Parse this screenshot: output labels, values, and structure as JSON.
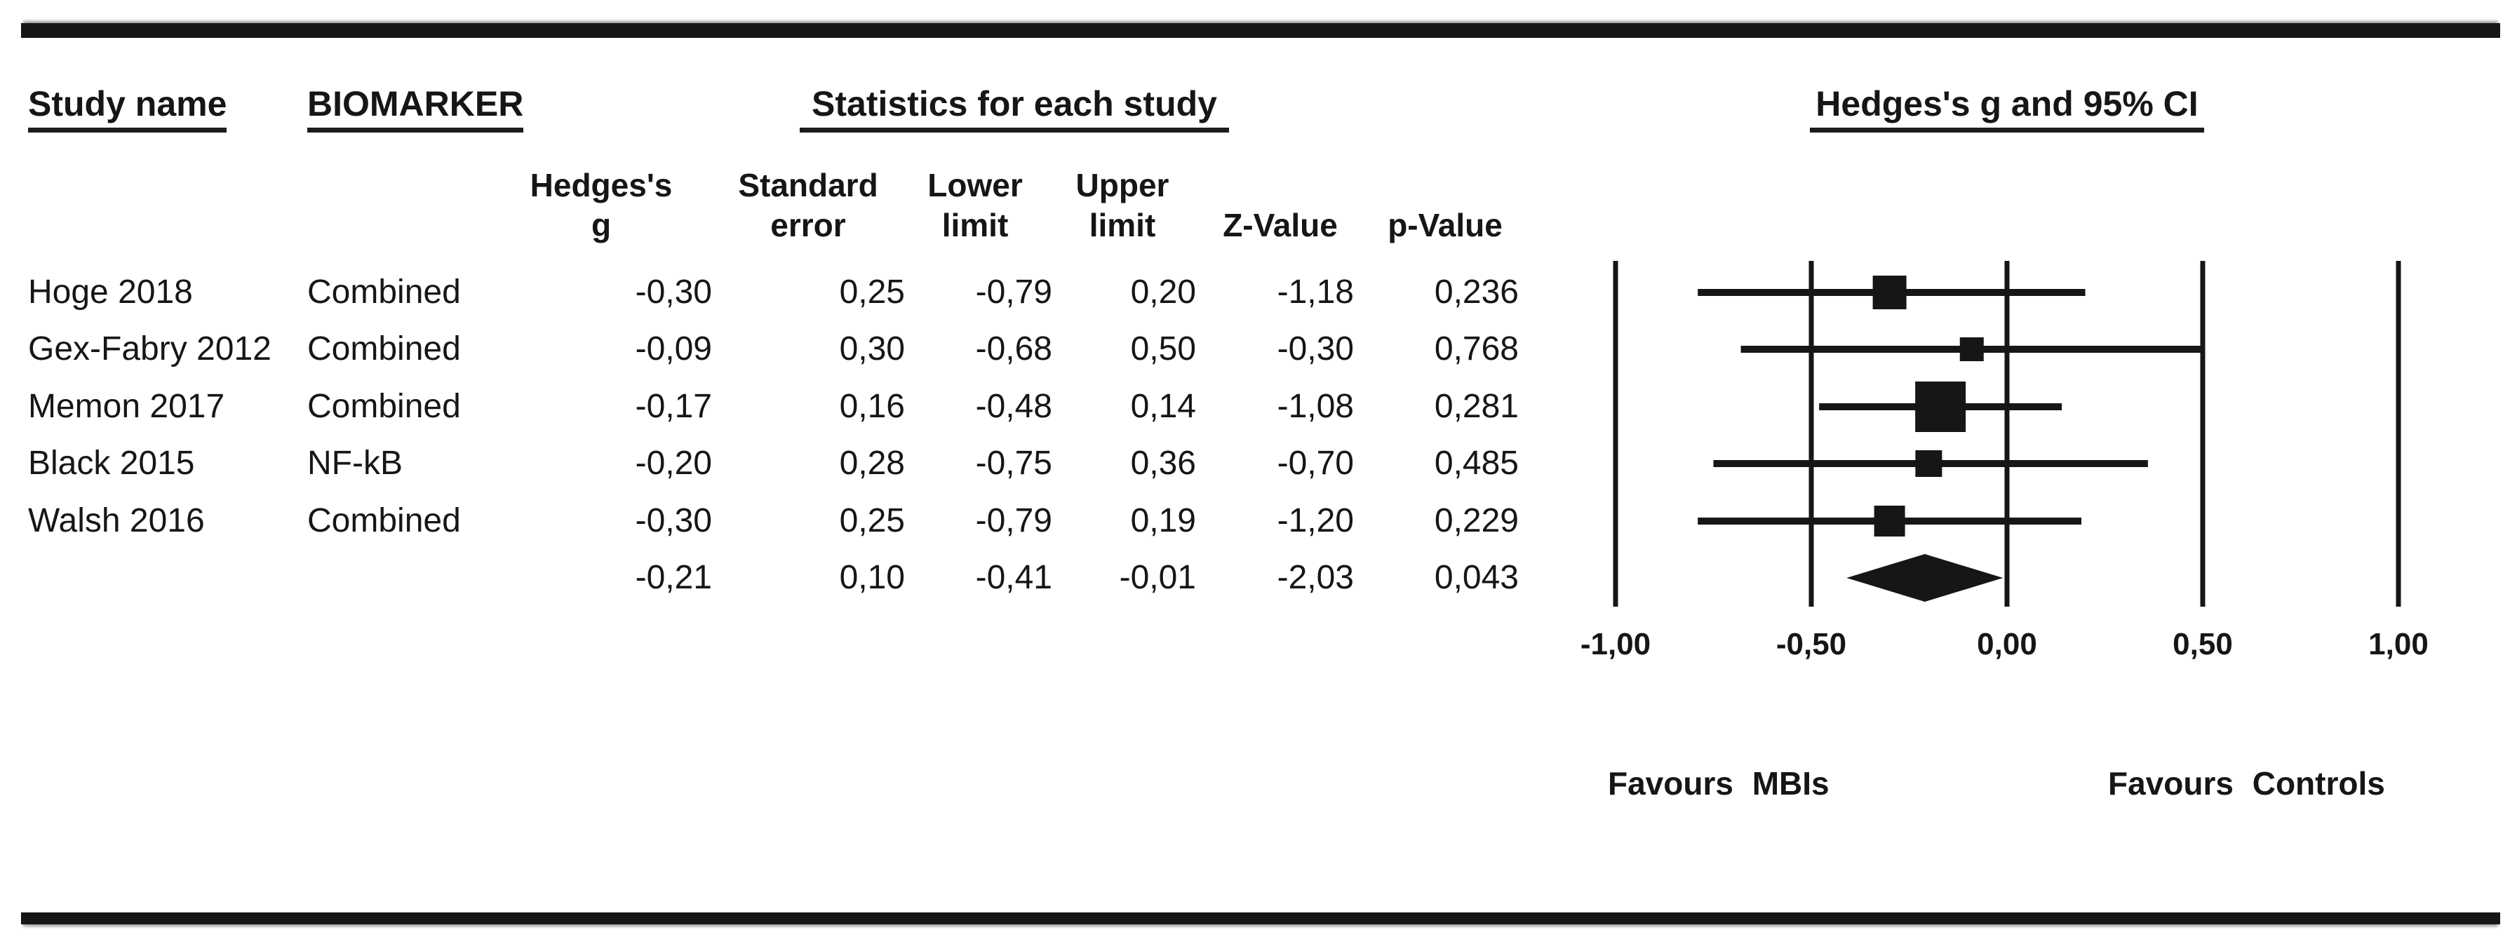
{
  "figure": {
    "header": {
      "study_name": "Study name",
      "biomarker": "BIOMARKER",
      "statistics": "Statistics for each study",
      "ci": "Hedges's g and 95% CI"
    },
    "stat_columns": [
      {
        "line1": "Hedges's",
        "line2": "g"
      },
      {
        "line1": "Standard",
        "line2": "error"
      },
      {
        "line1": "Lower",
        "line2": "limit"
      },
      {
        "line1": "Upper",
        "line2": "limit"
      },
      {
        "line1": "",
        "line2": "Z-Value"
      },
      {
        "line1": "",
        "line2": "p-Value"
      }
    ],
    "rows": [
      {
        "study": "Hoge 2018",
        "biomarker": "Combined",
        "values": [
          "-0,30",
          "0,25",
          "-0,79",
          "0,20",
          "-1,18",
          "0,236"
        ]
      },
      {
        "study": "Gex-Fabry 2012",
        "biomarker": "Combined",
        "values": [
          "-0,09",
          "0,30",
          "-0,68",
          "0,50",
          "-0,30",
          "0,768"
        ]
      },
      {
        "study": "Memon 2017",
        "biomarker": "Combined",
        "values": [
          "-0,17",
          "0,16",
          "-0,48",
          "0,14",
          "-1,08",
          "0,281"
        ]
      },
      {
        "study": "Black 2015",
        "biomarker": "NF-kB",
        "values": [
          "-0,20",
          "0,28",
          "-0,75",
          "0,36",
          "-0,70",
          "0,485"
        ]
      },
      {
        "study": "Walsh 2016",
        "biomarker": "Combined",
        "values": [
          "-0,30",
          "0,25",
          "-0,79",
          "0,19",
          "-1,20",
          "0,229"
        ]
      },
      {
        "study": "",
        "biomarker": "",
        "values": [
          "-0,21",
          "0,10",
          "-0,41",
          "-0,01",
          "-2,03",
          "0,043"
        ]
      }
    ],
    "favours_left": "Favours MBIs",
    "favours_right": "Favours Controls"
  },
  "chart_data": {
    "type": "scatter",
    "subtype": "forest-plot",
    "title": "Hedges's g and 95% CI",
    "xlim": [
      -1.0,
      1.0
    ],
    "x_ticks": [
      -1.0,
      -0.5,
      0.0,
      0.5,
      1.0
    ],
    "x_tick_labels": [
      "-1,00",
      "-0,50",
      "0,00",
      "0,50",
      "1,00"
    ],
    "grid": true,
    "marker_color": "#161616",
    "studies": [
      {
        "name": "Hoge 2018",
        "biomarker": "Combined",
        "g": -0.3,
        "se": 0.25,
        "lower": -0.79,
        "upper": 0.2,
        "z": -1.18,
        "p": 0.236,
        "marker_size": 48
      },
      {
        "name": "Gex-Fabry 2012",
        "biomarker": "Combined",
        "g": -0.09,
        "se": 0.3,
        "lower": -0.68,
        "upper": 0.5,
        "z": -0.3,
        "p": 0.768,
        "marker_size": 34
      },
      {
        "name": "Memon 2017",
        "biomarker": "Combined",
        "g": -0.17,
        "se": 0.16,
        "lower": -0.48,
        "upper": 0.14,
        "z": -1.08,
        "p": 0.281,
        "marker_size": 72
      },
      {
        "name": "Black 2015",
        "biomarker": "NF-kB",
        "g": -0.2,
        "se": 0.28,
        "lower": -0.75,
        "upper": 0.36,
        "z": -0.7,
        "p": 0.485,
        "marker_size": 38
      },
      {
        "name": "Walsh 2016",
        "biomarker": "Combined",
        "g": -0.3,
        "se": 0.25,
        "lower": -0.79,
        "upper": 0.19,
        "z": -1.2,
        "p": 0.229,
        "marker_size": 44
      }
    ],
    "overall": {
      "marker": "diamond",
      "g": -0.21,
      "se": 0.1,
      "lower": -0.41,
      "upper": -0.01,
      "z": -2.03,
      "p": 0.043
    },
    "favours_left": "Favours MBIs",
    "favours_right": "Favours Controls"
  }
}
